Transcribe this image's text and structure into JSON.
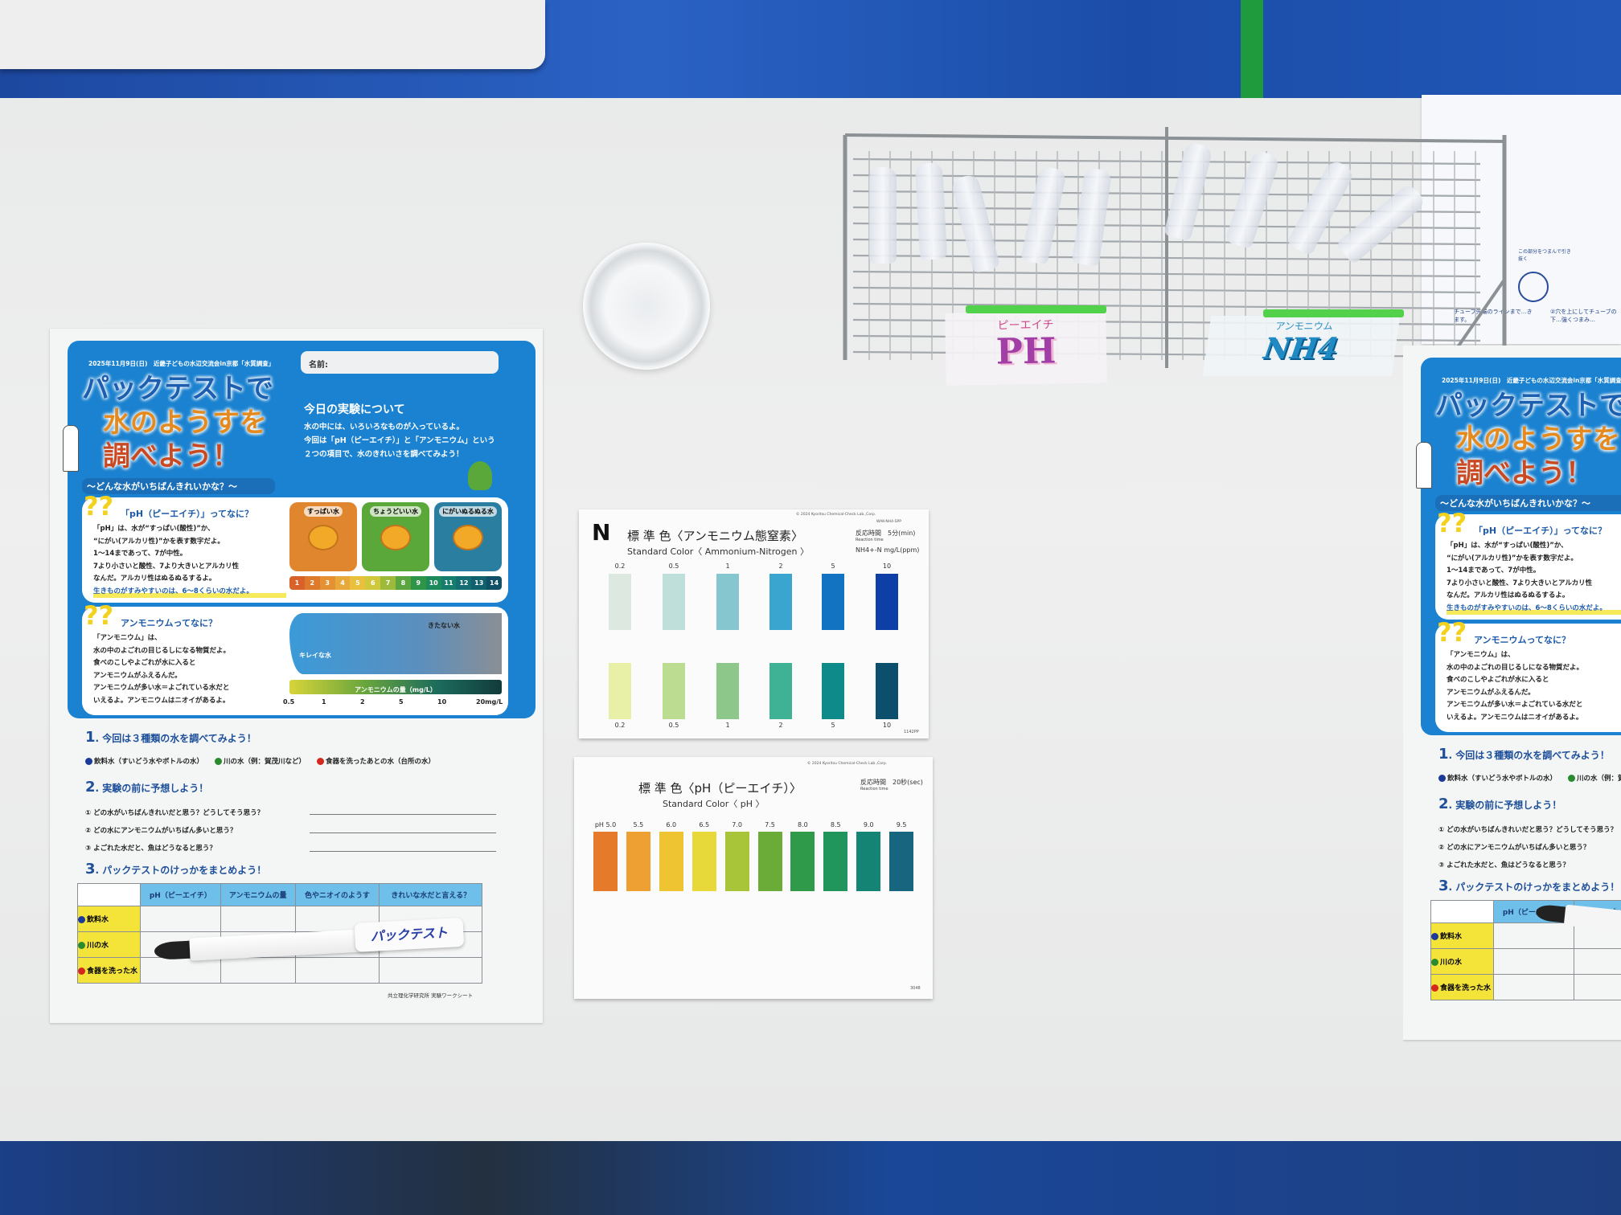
{
  "worksheet": {
    "date_line": "2025年11月9日(日)　近畿子どもの水辺交流会in京都「水質調査」",
    "name_label": "名前:",
    "title_line1": "パックテストで",
    "title_line2": "水のようすを",
    "title_line3": "調べよう！",
    "subtitle": "～どんな水がいちばんきれいかな？～",
    "today_heading": "今日の実験について",
    "today_text": [
      "水の中には、いろいろなものが入っているよ。",
      "今回は「pH（ピーエイチ）」と「アンモニウム」という",
      "２つの項目で、水のきれいさを調べてみよう！"
    ],
    "ph_box": {
      "heading": "「pH（ピーエイチ）」ってなに？",
      "lines": [
        "「pH」は、水が“すっぱい(酸性)”か、",
        "“にがい(アルカリ性)”かを表す数字だよ。",
        "1〜14まであって、7が中性。",
        "7より小さいと酸性、7より大きいとアルカリ性",
        "なんだ。アルカリ性はぬるぬるするよ。",
        "生きものがすみやすいのは、6〜8くらいの水だよ。"
      ],
      "cards": [
        {
          "label": "すっぱい水",
          "color": "#e0862e"
        },
        {
          "label": "ちょうどいい水",
          "color": "#5aa83a"
        },
        {
          "label": "にがいぬるぬる水",
          "color": "#2a7fa0"
        }
      ],
      "scale": [
        "1",
        "2",
        "3",
        "4",
        "5",
        "6",
        "7",
        "8",
        "9",
        "10",
        "11",
        "12",
        "13",
        "14"
      ],
      "scale_colors": [
        "#d9622a",
        "#dd7a2c",
        "#e49033",
        "#e9a93a",
        "#e8c03c",
        "#cfc83c",
        "#9dba3a",
        "#5aa53e",
        "#2e9448",
        "#1d8a5c",
        "#167c6c",
        "#136d72",
        "#11606e",
        "#0f5066"
      ]
    },
    "ammonium_box": {
      "heading": "アンモニウムってなに？",
      "lines": [
        "「アンモニウム」は、",
        "水の中のよごれの目じるしになる物質だよ。",
        "食べのこしやよごれが水に入ると",
        "アンモニウムがふえるんだ。",
        "アンモニウムが多い水＝よごれている水だと",
        "いえるよ。アンモニウムはニオイがあるよ。"
      ],
      "clean_label": "キレイな水",
      "dirty_label": "きたない水",
      "bar_label": "アンモニウムの量（mg/L）",
      "ticks": [
        "0.5",
        "1",
        "2",
        "5",
        "10",
        "20mg/L"
      ]
    },
    "section1": {
      "num": "1",
      "title": ". 今回は３種類の水を調べてみよう！",
      "items": [
        {
          "label": "飲料水（すいどう水やボトルの水）",
          "color": "#1b3a9a"
        },
        {
          "label": "川の水（例：賀茂川など）",
          "color": "#2a8a2e"
        },
        {
          "label": "食器を洗ったあとの水（台所の水）",
          "color": "#d4281e"
        }
      ]
    },
    "section2": {
      "num": "2",
      "title": ". 実験の前に予想しよう！",
      "questions": [
        "① どの水がいちばんきれいだと思う？どうしてそう思う？",
        "② どの水にアンモニウムがいちばん多いと思う？",
        "③ よごれた水だと、魚はどうなると思う？"
      ]
    },
    "section3": {
      "num": "3",
      "title": ". パックテストのけっかをまとめよう！",
      "columns": [
        "pH（ピーエイチ）",
        "アンモニウムの量",
        "色やニオイのようす",
        "きれいな水だと言える？"
      ],
      "rows": [
        "飲料水",
        "川の水",
        "食器を洗った水"
      ]
    },
    "footer": "共立理化学研究所 実験ワークシート"
  },
  "pen": {
    "brand": "パックテスト"
  },
  "rack": {
    "ph_label_ruby": "ピーエイチ",
    "ph_label": "PH",
    "nh4_label_ruby": "アンモニウム",
    "nh4_label": "NH4"
  },
  "ammonia_card": {
    "badge": "N",
    "title_jp": "標 準 色〈アンモニウム態窒素〉",
    "title_en": "Standard Color〈 Ammonium-Nitrogen 〉",
    "copyright": "© 2024 Kyoritsu Chemical-Check Lab.,Corp.",
    "code": "WAK-NH4-SPP",
    "reaction_jp": "反応時間　5分(min)",
    "reaction_en": "Reaction time",
    "unit": "NH4+-N mg/L(ppm)",
    "levels": [
      "0.2",
      "0.5",
      "1",
      "2",
      "5",
      "10"
    ],
    "top_colors": [
      "#dde8e1",
      "#bfe0da",
      "#86c7cf",
      "#3aa5cf",
      "#1273c2",
      "#0e3fa6"
    ],
    "bottom_colors": [
      "#e8f0a8",
      "#bcdc91",
      "#8dc88a",
      "#3fb295",
      "#0f8a8a",
      "#0c4f6d"
    ],
    "lot": "1142PP"
  },
  "ph_card": {
    "title_jp": "標 準 色〈pH（ピーエイチ）〉",
    "title_en": "Standard Color〈 pH 〉",
    "copyright": "© 2024 Kyoritsu Chemical-Check Lab.,Corp.",
    "reaction_jp": "反応時間　20秒(sec)",
    "reaction_en": "Reaction time",
    "levels": [
      "pH 5.0",
      "5.5",
      "6.0",
      "6.5",
      "7.0",
      "7.5",
      "8.0",
      "8.5",
      "9.0",
      "9.5"
    ],
    "colors": [
      "#e57a2a",
      "#eea033",
      "#efc432",
      "#e8d93a",
      "#a8c53a",
      "#6bab38",
      "#2f9b4a",
      "#20965c",
      "#148474",
      "#17657f"
    ],
    "lot": "3048"
  },
  "instruction_sheet": {
    "caption1": "この部分をつまんで引き抜く",
    "caption2": "チューブ先端のラインまで…きます。",
    "caption3": "②穴を上にしてチューブの下…強くつまみ…"
  }
}
